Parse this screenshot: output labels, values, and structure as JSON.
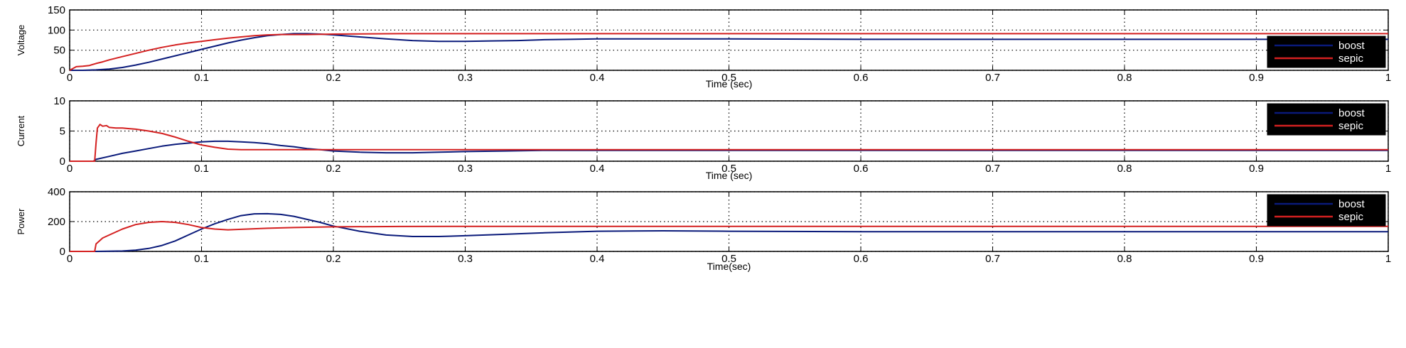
{
  "colors": {
    "boost": "#0a1a7a",
    "sepic": "#d42020",
    "legend_bg": "#000000",
    "grid": "#000000",
    "background": "#ffffff"
  },
  "chart_data": [
    {
      "type": "line",
      "ylabel": "Voltage",
      "xlabel": "Time (sec)",
      "xlim": [
        0,
        1
      ],
      "ylim": [
        0,
        150
      ],
      "xticks": [
        "0",
        "0.1",
        "0.2",
        "0.3",
        "0.4",
        "0.5",
        "0.6",
        "0.7",
        "0.8",
        "0.9",
        "1"
      ],
      "yticks": [
        "0",
        "50",
        "100",
        "150"
      ],
      "grid": true,
      "legend": {
        "position": "bottom-right",
        "entries": [
          "boost",
          "sepic"
        ]
      },
      "series": [
        {
          "name": "boost",
          "color": "#0a1a7a",
          "x": [
            0,
            0.01,
            0.02,
            0.03,
            0.04,
            0.05,
            0.06,
            0.07,
            0.08,
            0.09,
            0.1,
            0.11,
            0.12,
            0.13,
            0.14,
            0.15,
            0.16,
            0.17,
            0.18,
            0.19,
            0.2,
            0.22,
            0.24,
            0.26,
            0.28,
            0.3,
            0.32,
            0.34,
            0.36,
            0.38,
            0.4,
            0.45,
            0.5,
            0.6,
            0.7,
            0.8,
            0.9,
            1.0
          ],
          "y": [
            0,
            0,
            1,
            3,
            7,
            13,
            20,
            28,
            36,
            44,
            52,
            60,
            68,
            75,
            81,
            86,
            89,
            91,
            91,
            90,
            88,
            83,
            78,
            74,
            72,
            72,
            73,
            74,
            76,
            77,
            78,
            78,
            78,
            77,
            77,
            77,
            77,
            77
          ]
        },
        {
          "name": "sepic",
          "color": "#d42020",
          "x": [
            0,
            0.005,
            0.01,
            0.015,
            0.02,
            0.025,
            0.03,
            0.04,
            0.05,
            0.06,
            0.07,
            0.08,
            0.09,
            0.1,
            0.11,
            0.12,
            0.13,
            0.14,
            0.15,
            0.16,
            0.17,
            0.18,
            0.2,
            0.25,
            0.3,
            0.35,
            0.4,
            0.5,
            0.6,
            0.7,
            0.8,
            0.9,
            1.0
          ],
          "y": [
            0,
            9,
            10,
            12,
            17,
            21,
            26,
            34,
            42,
            50,
            57,
            63,
            68,
            72,
            76,
            80,
            83,
            86,
            88,
            89,
            89,
            89,
            90,
            91,
            91,
            91,
            91,
            91,
            91,
            91,
            91,
            91,
            91
          ]
        }
      ]
    },
    {
      "type": "line",
      "ylabel": "Current",
      "xlabel": "Time (sec)",
      "xlim": [
        0,
        1
      ],
      "ylim": [
        0,
        10
      ],
      "xticks": [
        "0",
        "0.1",
        "0.2",
        "0.3",
        "0.4",
        "0.5",
        "0.6",
        "0.7",
        "0.8",
        "0.9",
        "1"
      ],
      "yticks": [
        "0",
        "5",
        "10"
      ],
      "grid": true,
      "legend": {
        "position": "top-right",
        "entries": [
          "boost",
          "sepic"
        ]
      },
      "series": [
        {
          "name": "boost",
          "color": "#0a1a7a",
          "x": [
            0,
            0.018,
            0.02,
            0.03,
            0.04,
            0.05,
            0.06,
            0.07,
            0.08,
            0.09,
            0.1,
            0.11,
            0.12,
            0.13,
            0.14,
            0.15,
            0.16,
            0.17,
            0.18,
            0.19,
            0.2,
            0.22,
            0.24,
            0.26,
            0.28,
            0.3,
            0.33,
            0.36,
            0.4,
            0.5,
            0.6,
            0.7,
            0.8,
            0.9,
            1.0
          ],
          "y": [
            0,
            0,
            0.3,
            0.8,
            1.3,
            1.7,
            2.1,
            2.5,
            2.8,
            3.0,
            3.2,
            3.3,
            3.3,
            3.2,
            3.1,
            2.9,
            2.6,
            2.4,
            2.1,
            1.9,
            1.7,
            1.5,
            1.4,
            1.4,
            1.5,
            1.6,
            1.7,
            1.8,
            1.8,
            1.8,
            1.8,
            1.8,
            1.8,
            1.8,
            1.8
          ]
        },
        {
          "name": "sepic",
          "color": "#d42020",
          "x": [
            0,
            0.019,
            0.02,
            0.021,
            0.023,
            0.025,
            0.028,
            0.03,
            0.035,
            0.04,
            0.045,
            0.05,
            0.06,
            0.07,
            0.08,
            0.09,
            0.1,
            0.11,
            0.12,
            0.13,
            0.14,
            0.15,
            0.2,
            0.3,
            0.4,
            0.5,
            0.6,
            0.7,
            0.8,
            0.9,
            1.0
          ],
          "y": [
            0,
            0,
            3.0,
            5.5,
            6.1,
            5.8,
            5.9,
            5.6,
            5.5,
            5.5,
            5.4,
            5.3,
            5.0,
            4.6,
            4.0,
            3.3,
            2.7,
            2.3,
            2.0,
            1.9,
            1.9,
            1.9,
            1.9,
            1.9,
            1.9,
            1.9,
            1.9,
            1.9,
            1.9,
            1.9,
            1.9
          ]
        }
      ]
    },
    {
      "type": "line",
      "ylabel": "Power",
      "xlabel": "Time(sec)",
      "xlim": [
        0,
        1
      ],
      "ylim": [
        0,
        400
      ],
      "xticks": [
        "0",
        "0.1",
        "0.2",
        "0.3",
        "0.4",
        "0.5",
        "0.6",
        "0.7",
        "0.8",
        "0.9",
        "1"
      ],
      "yticks": [
        "0",
        "200",
        "400"
      ],
      "grid": true,
      "legend": {
        "position": "top-right",
        "entries": [
          "boost",
          "sepic"
        ]
      },
      "series": [
        {
          "name": "boost",
          "color": "#0a1a7a",
          "x": [
            0,
            0.02,
            0.04,
            0.05,
            0.06,
            0.07,
            0.08,
            0.09,
            0.1,
            0.11,
            0.12,
            0.13,
            0.14,
            0.15,
            0.16,
            0.17,
            0.18,
            0.19,
            0.2,
            0.22,
            0.24,
            0.26,
            0.28,
            0.3,
            0.33,
            0.36,
            0.4,
            0.45,
            0.5,
            0.6,
            0.7,
            0.8,
            0.9,
            1.0
          ],
          "y": [
            0,
            0,
            3,
            8,
            20,
            40,
            70,
            110,
            150,
            185,
            215,
            240,
            252,
            253,
            248,
            235,
            215,
            195,
            170,
            135,
            110,
            100,
            100,
            105,
            115,
            125,
            135,
            138,
            135,
            132,
            132,
            132,
            132,
            132
          ]
        },
        {
          "name": "sepic",
          "color": "#d42020",
          "x": [
            0,
            0.019,
            0.02,
            0.025,
            0.03,
            0.04,
            0.05,
            0.06,
            0.07,
            0.08,
            0.09,
            0.1,
            0.11,
            0.12,
            0.13,
            0.14,
            0.15,
            0.17,
            0.2,
            0.25,
            0.3,
            0.4,
            0.5,
            0.6,
            0.7,
            0.8,
            0.9,
            1.0
          ],
          "y": [
            0,
            0,
            50,
            90,
            110,
            150,
            180,
            195,
            200,
            195,
            180,
            160,
            150,
            145,
            148,
            152,
            155,
            160,
            165,
            167,
            168,
            168,
            168,
            168,
            168,
            168,
            168,
            168
          ]
        }
      ]
    }
  ]
}
